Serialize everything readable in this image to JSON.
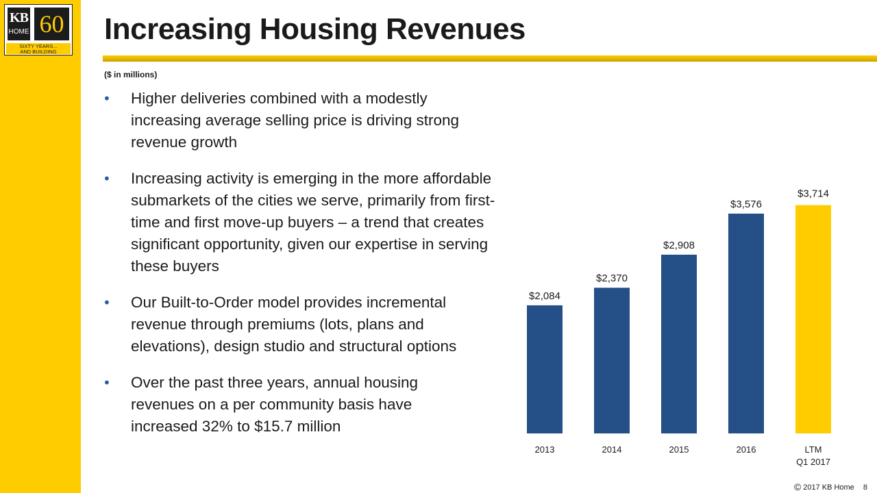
{
  "logo": {
    "brand_top": "KB",
    "brand_bottom": "HOME",
    "anniversary": "60",
    "tagline_1": "SIXTY YEARS...",
    "tagline_2": "AND BUILDING"
  },
  "title": "Increasing Housing Revenues",
  "subtitle": "($ in millions)",
  "bullets": [
    "Higher deliveries combined with a modestly increasing average selling price is driving strong revenue growth",
    "Increasing activity is emerging in the more affordable submarkets of the cities we serve, primarily from first-time and first move-up buyers – a trend that creates significant opportunity, given our expertise in serving these buyers",
    "Our Built-to-Order model provides incremental revenue through premiums (lots, plans and elevations), design studio and structural options",
    "Over the past three years, annual housing revenues on a per community basis have increased 32% to $15.7 million"
  ],
  "bullet_symbol": "•",
  "colors": {
    "accent_yellow": "#ffcc00",
    "bar_blue": "#244f87",
    "bullet_blue": "#2a5aa6"
  },
  "chart_data": {
    "type": "bar",
    "categories": [
      "2013",
      "2014",
      "2015",
      "2016",
      "LTM Q1 2017"
    ],
    "category_lines": [
      [
        "2013"
      ],
      [
        "2014"
      ],
      [
        "2015"
      ],
      [
        "2016"
      ],
      [
        "LTM",
        "Q1 2017"
      ]
    ],
    "values": [
      2084,
      2370,
      2908,
      3576,
      3714
    ],
    "data_labels": [
      "$2,084",
      "$2,370",
      "$2,908",
      "$3,576",
      "$3,714"
    ],
    "bar_colors": [
      "#244f87",
      "#244f87",
      "#244f87",
      "#244f87",
      "#ffcc00"
    ],
    "unit": "$ in millions",
    "title": "",
    "xlabel": "",
    "ylabel": "",
    "grid": false,
    "legend": "none"
  },
  "footer": {
    "copyright_symbol": "©",
    "copyright_text": "2017 KB Home",
    "page_number": "8"
  }
}
